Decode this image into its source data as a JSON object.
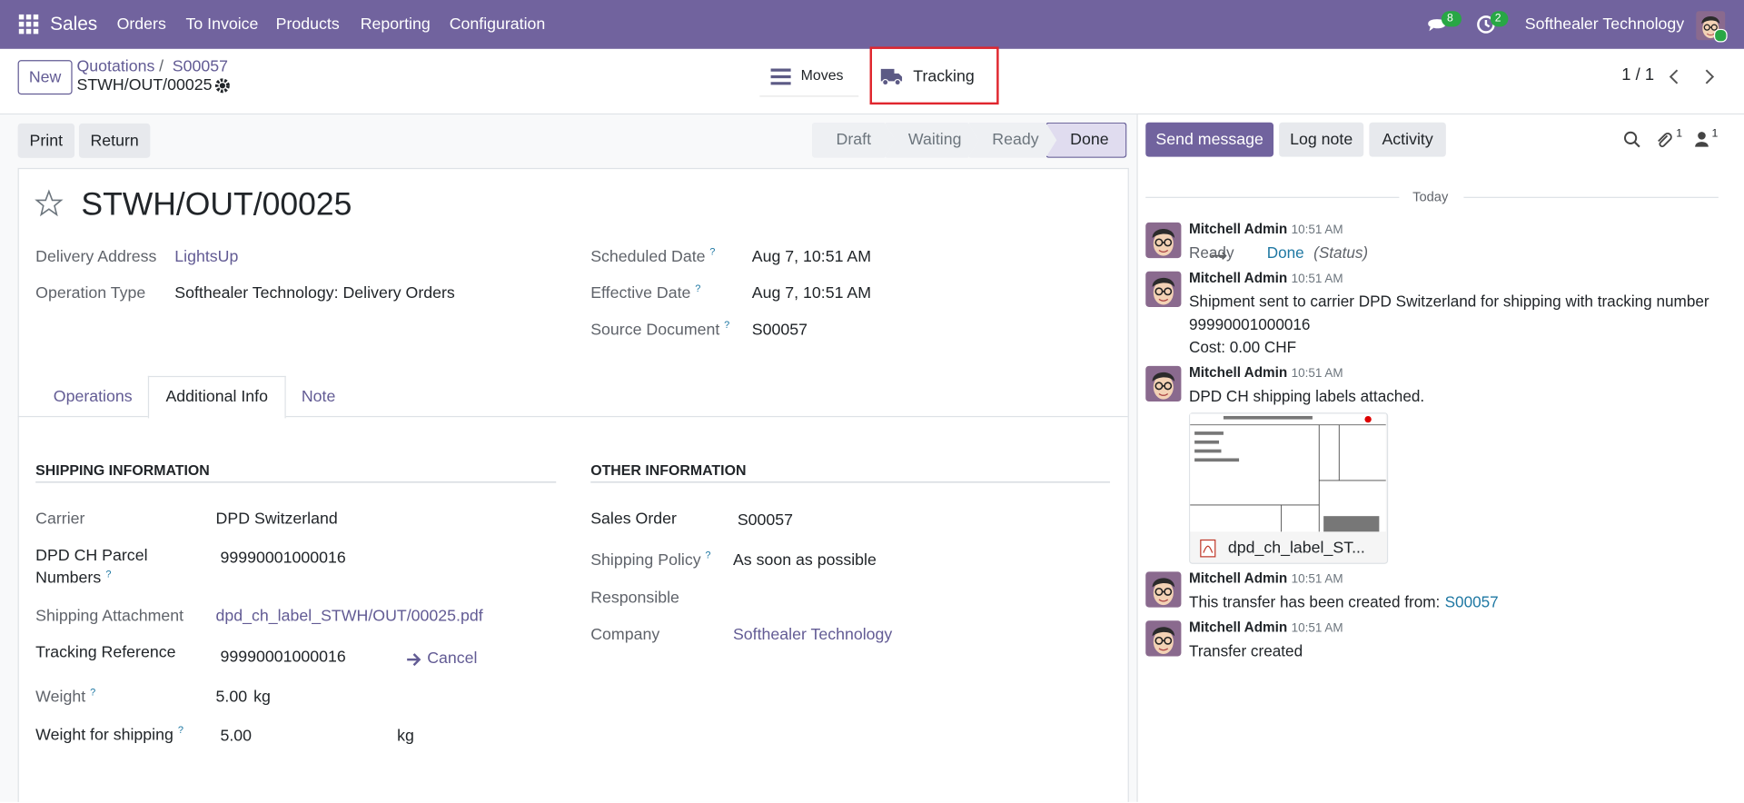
{
  "navbar": {
    "app_name": "Sales",
    "menu": [
      "Orders",
      "To Invoice",
      "Products",
      "Reporting",
      "Configuration"
    ],
    "unread_messages": 8,
    "activities": 2,
    "company": "Softhealer Technology"
  },
  "control_panel": {
    "new_button": "New",
    "breadcrumbs": [
      "Quotations",
      "S00057"
    ],
    "breadcrumb_separator": "/",
    "record_name": "STWH/OUT/00025",
    "smart_buttons": [
      "Moves",
      "Tracking"
    ],
    "highlighted_button": "Tracking",
    "pager": "1 / 1"
  },
  "form": {
    "action_buttons": [
      "Print",
      "Return"
    ],
    "status_bar": [
      "Draft",
      "Waiting",
      "Ready",
      "Done"
    ],
    "current_status": "Done",
    "title": "STWH/OUT/00025",
    "help_marker": "?",
    "main_fields": [
      {
        "label": "Delivery Address",
        "value": "LightsUp"
      },
      {
        "label": "Operation Type",
        "value": "Softhealer Technology: Delivery Orders"
      },
      {
        "label": "Scheduled Date",
        "value": "Aug 7, 10:51 AM"
      },
      {
        "label": "Effective Date",
        "value": "Aug 7, 10:51 AM"
      },
      {
        "label": "Source Document",
        "value": "S00057"
      }
    ],
    "tabs": [
      "Operations",
      "Additional Info",
      "Note"
    ],
    "active_tab": "Additional Info",
    "shipping_information": {
      "title": "SHIPPING INFORMATION",
      "fields": [
        {
          "label": "Carrier",
          "value": "DPD Switzerland"
        },
        {
          "label": "DPD CH Parcel Numbers",
          "value": "99990001000016"
        },
        {
          "label": "Shipping Attachment",
          "value": "dpd_ch_label_STWH/OUT/00025.pdf"
        },
        {
          "label": "Tracking Reference",
          "value": "99990001000016",
          "action": "Cancel"
        },
        {
          "label": "Weight",
          "value": "5.00",
          "unit": "kg"
        },
        {
          "label": "Weight for shipping",
          "value": "5.00",
          "unit": "kg"
        }
      ]
    },
    "other_information": {
      "title": "OTHER INFORMATION",
      "fields": [
        {
          "label": "Sales Order",
          "value": "S00057"
        },
        {
          "label": "Shipping Policy",
          "value": "As soon as possible"
        },
        {
          "label": "Responsible"
        },
        {
          "label": "Company",
          "value": "Softhealer Technology"
        }
      ]
    }
  },
  "chatter": {
    "buttons": [
      "Send message",
      "Log note",
      "Activity"
    ],
    "attachments": 1,
    "followers": 1,
    "date_separator": "Today",
    "messages": [
      {
        "author": "Mitchell Admin",
        "time": "10:51 AM",
        "old_value": "Ready",
        "new_value": "Done",
        "field": "(Status)"
      },
      {
        "author": "Mitchell Admin",
        "time": "10:51 AM",
        "body": "Shipment sent to carrier DPD Switzerland for shipping with tracking number 99990001000016",
        "extra": "Cost: 0.00 CHF"
      },
      {
        "author": "Mitchell Admin",
        "time": "10:51 AM",
        "body": "DPD CH shipping labels attached.",
        "attachment": "dpd_ch_label_ST..."
      },
      {
        "author": "Mitchell Admin",
        "time": "10:51 AM",
        "body": "This transfer has been created from:",
        "link": "S00057"
      },
      {
        "author": "Mitchell Admin",
        "time": "10:51 AM",
        "body": "Transfer created"
      }
    ]
  }
}
